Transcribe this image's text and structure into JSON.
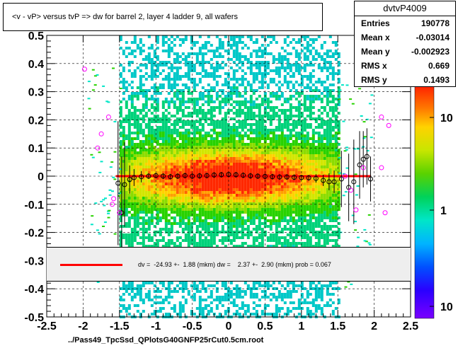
{
  "title": "<v - vP>       versus  tvP =>  dw for barrel 2, layer 4 ladder 9, all wafers",
  "stats": {
    "name": "dvtvP4009",
    "rows": [
      {
        "key": "Entries",
        "value": "190778"
      },
      {
        "key": "Mean x",
        "value": "-0.03014"
      },
      {
        "key": "Mean y",
        "value": "-0.002923"
      },
      {
        "key": "RMS x",
        "value": "0.669"
      },
      {
        "key": "RMS y",
        "value": "0.1493"
      }
    ]
  },
  "fit_text": "dv =  -24.93 +-  1.88 (mkm) dw =    2.37 +-  2.90 (mkm) prob = 0.067",
  "x_title": "../Pass49_TpcSsd_QPlotsG40GNFP25rCut0.5cm.root",
  "colors": {
    "fit_line": "#ff0000",
    "profile_marker": "#000000",
    "outlier_marker": "#ff00ff"
  },
  "chart_data": {
    "type": "heatmap",
    "xlim": [
      -2.5,
      2.5
    ],
    "ylim": [
      -0.5,
      0.5
    ],
    "x_ticks": [
      "-2.5",
      "-2",
      "-1.5",
      "-1",
      "-0.5",
      "0",
      "0.5",
      "1",
      "1.5",
      "2",
      "2.5"
    ],
    "y_ticks": [
      "-0.5",
      "-0.4",
      "-0.3",
      "-0.2",
      "-0.1",
      "0",
      "0.1",
      "0.2",
      "0.3",
      "0.4",
      "0.5"
    ],
    "z_scale": "log",
    "z_ticks": [
      "1",
      "10"
    ],
    "palette_extra_label": "10",
    "fit_line": {
      "x1": -1.55,
      "x2": 1.95,
      "y": 0.0
    },
    "profile_points": [
      {
        "x": -1.52,
        "y": -0.025,
        "err": 0.22
      },
      {
        "x": -1.47,
        "y": -0.13,
        "err": 0.2
      },
      {
        "x": -1.43,
        "y": -0.03,
        "err": 0.15
      },
      {
        "x": -1.36,
        "y": -0.012,
        "err": 0.05
      },
      {
        "x": -1.3,
        "y": -0.005,
        "err": 0.03
      },
      {
        "x": -1.2,
        "y": -0.002,
        "err": 0.02
      },
      {
        "x": -1.1,
        "y": 0.0,
        "err": 0.01
      },
      {
        "x": -1.0,
        "y": 0.002,
        "err": 0.01
      },
      {
        "x": -0.9,
        "y": 0.0,
        "err": 0.01
      },
      {
        "x": -0.8,
        "y": -0.002,
        "err": 0.01
      },
      {
        "x": -0.7,
        "y": 0.0,
        "err": 0.01
      },
      {
        "x": -0.6,
        "y": 0.002,
        "err": 0.01
      },
      {
        "x": -0.5,
        "y": 0.0,
        "err": 0.01
      },
      {
        "x": -0.4,
        "y": 0.001,
        "err": 0.01
      },
      {
        "x": -0.3,
        "y": 0.002,
        "err": 0.01
      },
      {
        "x": -0.2,
        "y": 0.004,
        "err": 0.01
      },
      {
        "x": -0.1,
        "y": 0.005,
        "err": 0.01
      },
      {
        "x": 0.0,
        "y": 0.006,
        "err": 0.01
      },
      {
        "x": 0.1,
        "y": 0.005,
        "err": 0.01
      },
      {
        "x": 0.2,
        "y": 0.003,
        "err": 0.01
      },
      {
        "x": 0.3,
        "y": 0.001,
        "err": 0.01
      },
      {
        "x": 0.4,
        "y": 0.0,
        "err": 0.01
      },
      {
        "x": 0.5,
        "y": -0.001,
        "err": 0.01
      },
      {
        "x": 0.6,
        "y": -0.002,
        "err": 0.01
      },
      {
        "x": 0.7,
        "y": -0.003,
        "err": 0.01
      },
      {
        "x": 0.8,
        "y": -0.003,
        "err": 0.01
      },
      {
        "x": 0.9,
        "y": -0.004,
        "err": 0.01
      },
      {
        "x": 1.0,
        "y": -0.005,
        "err": 0.01
      },
      {
        "x": 1.1,
        "y": -0.006,
        "err": 0.01
      },
      {
        "x": 1.2,
        "y": -0.008,
        "err": 0.015
      },
      {
        "x": 1.3,
        "y": -0.015,
        "err": 0.02
      },
      {
        "x": 1.38,
        "y": -0.02,
        "err": 0.03
      },
      {
        "x": 1.45,
        "y": -0.02,
        "err": 0.04
      },
      {
        "x": 1.55,
        "y": -0.01,
        "err": 0.1
      },
      {
        "x": 1.65,
        "y": -0.04,
        "err": 0.12
      },
      {
        "x": 1.72,
        "y": -0.02,
        "err": 0.15
      },
      {
        "x": 1.8,
        "y": 0.04,
        "err": 0.12
      },
      {
        "x": 1.85,
        "y": 0.06,
        "err": 0.1
      },
      {
        "x": 1.9,
        "y": 0.07,
        "err": 0.1
      },
      {
        "x": 1.95,
        "y": -0.01,
        "err": 0.08
      }
    ],
    "outlier_points": [
      {
        "x": -1.98,
        "y": 0.38
      },
      {
        "x": -1.75,
        "y": 0.15
      },
      {
        "x": -1.8,
        "y": 0.1
      },
      {
        "x": -1.65,
        "y": 0.21
      },
      {
        "x": -1.6,
        "y": -0.1
      },
      {
        "x": -1.58,
        "y": -0.08
      },
      {
        "x": -1.5,
        "y": -0.13
      },
      {
        "x": 1.6,
        "y": 0.0
      },
      {
        "x": 1.68,
        "y": -0.05
      },
      {
        "x": 1.75,
        "y": -0.12
      },
      {
        "x": 1.85,
        "y": 0.03
      },
      {
        "x": 2.1,
        "y": 0.21
      },
      {
        "x": 2.15,
        "y": -0.13
      },
      {
        "x": 2.2,
        "y": 0.18
      },
      {
        "x": 2.1,
        "y": 0.03
      }
    ]
  }
}
